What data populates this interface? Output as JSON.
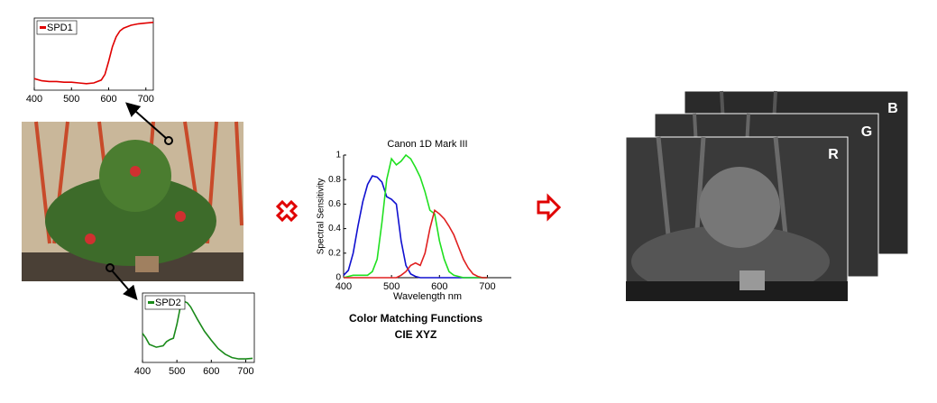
{
  "chart_data": [
    {
      "type": "line",
      "x": [
        400,
        420,
        440,
        460,
        480,
        500,
        520,
        540,
        560,
        580,
        590,
        600,
        610,
        620,
        630,
        640,
        660,
        680,
        700,
        720
      ],
      "series": [
        {
          "name": "SPD1",
          "color": "#e00000",
          "values": [
            0.16,
            0.13,
            0.12,
            0.12,
            0.11,
            0.11,
            0.1,
            0.09,
            0.1,
            0.14,
            0.22,
            0.4,
            0.6,
            0.74,
            0.82,
            0.86,
            0.9,
            0.92,
            0.93,
            0.94
          ]
        }
      ],
      "xlim": [
        400,
        720
      ],
      "ylim": [
        0,
        1
      ],
      "xticks": [
        400,
        500,
        600,
        700
      ],
      "legend": "top-left"
    },
    {
      "type": "line",
      "x": [
        400,
        410,
        420,
        440,
        460,
        470,
        480,
        490,
        500,
        510,
        520,
        530,
        540,
        560,
        580,
        600,
        620,
        640,
        660,
        680,
        700,
        720
      ],
      "series": [
        {
          "name": "SPD2",
          "color": "#1a8a1a",
          "values": [
            0.42,
            0.35,
            0.26,
            0.22,
            0.24,
            0.3,
            0.33,
            0.35,
            0.55,
            0.8,
            0.88,
            0.86,
            0.8,
            0.62,
            0.45,
            0.32,
            0.2,
            0.12,
            0.07,
            0.05,
            0.05,
            0.06
          ]
        }
      ],
      "xlim": [
        400,
        725
      ],
      "ylim": [
        0,
        1
      ],
      "xticks": [
        400,
        500,
        600,
        700
      ],
      "legend": "top-left"
    },
    {
      "type": "line",
      "title": "Canon 1D Mark III",
      "x_label": "Wavelength nm",
      "y_label": "Spectral Sensitivity",
      "x": [
        400,
        410,
        420,
        430,
        440,
        450,
        460,
        470,
        480,
        490,
        500,
        510,
        520,
        530,
        540,
        550,
        560,
        570,
        580,
        590,
        600,
        610,
        620,
        630,
        640,
        650,
        660,
        670,
        680,
        690,
        700
      ],
      "series": [
        {
          "name": "Blue",
          "color": "#1010d0",
          "values": [
            0.02,
            0.06,
            0.2,
            0.42,
            0.62,
            0.76,
            0.83,
            0.82,
            0.78,
            0.66,
            0.64,
            0.6,
            0.3,
            0.1,
            0.03,
            0.01,
            0,
            0,
            0,
            0,
            0,
            0,
            0,
            0,
            0,
            0,
            0,
            0,
            0,
            0,
            0
          ]
        },
        {
          "name": "Green",
          "color": "#20e020",
          "values": [
            0,
            0.01,
            0.02,
            0.02,
            0.02,
            0.02,
            0.05,
            0.15,
            0.45,
            0.8,
            0.97,
            0.92,
            0.95,
            1,
            0.97,
            0.9,
            0.82,
            0.7,
            0.55,
            0.52,
            0.3,
            0.15,
            0.05,
            0.02,
            0.01,
            0,
            0,
            0,
            0,
            0,
            0
          ]
        },
        {
          "name": "Red",
          "color": "#e02020",
          "values": [
            0,
            0,
            0,
            0,
            0,
            0,
            0,
            0,
            0,
            0,
            0,
            0,
            0.02,
            0.05,
            0.1,
            0.12,
            0.1,
            0.2,
            0.4,
            0.55,
            0.52,
            0.48,
            0.42,
            0.35,
            0.25,
            0.15,
            0.08,
            0.03,
            0.01,
            0,
            0
          ]
        }
      ],
      "xlim": [
        400,
        750
      ],
      "ylim": [
        0,
        1
      ],
      "xticks": [
        400,
        500,
        600,
        700
      ],
      "yticks": [
        0,
        0.2,
        0.4,
        0.6,
        0.8,
        1
      ]
    }
  ],
  "captions": [
    "Color Matching Functions",
    "CIE XYZ"
  ],
  "channels": [
    "R",
    "G",
    "B"
  ]
}
